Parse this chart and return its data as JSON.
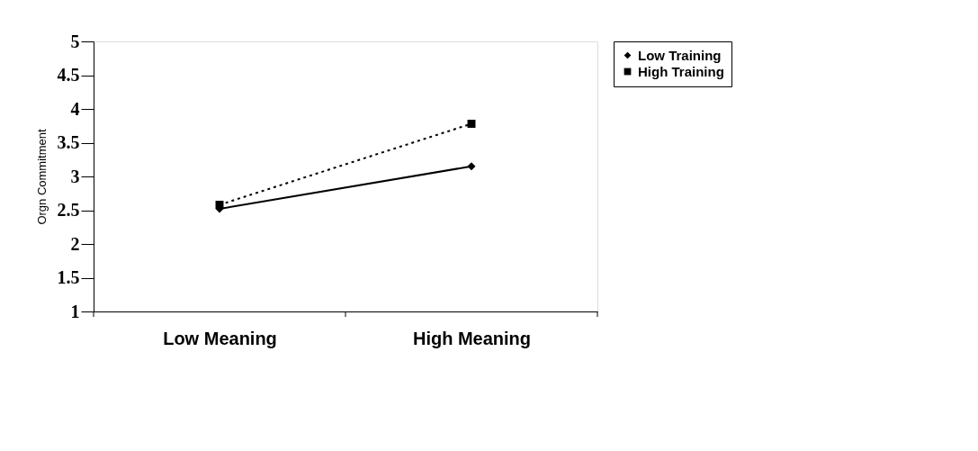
{
  "chart_data": {
    "type": "line",
    "ylabel": "Orgn Commitment",
    "categories": [
      "Low Meaning",
      "High Meaning"
    ],
    "series": [
      {
        "name": "Low Training",
        "color": "#000000",
        "values": [
          2.52,
          3.15
        ],
        "marker": "diamond",
        "line_style": "solid"
      },
      {
        "name": "High Training",
        "color": "#000000",
        "values": [
          2.58,
          3.78
        ],
        "marker": "square",
        "line_style": "dotted"
      }
    ],
    "ylim": [
      1,
      5
    ],
    "yticks": [
      1,
      1.5,
      2,
      2.5,
      3,
      3.5,
      4,
      4.5,
      5
    ],
    "grid": false,
    "legend": "right"
  }
}
